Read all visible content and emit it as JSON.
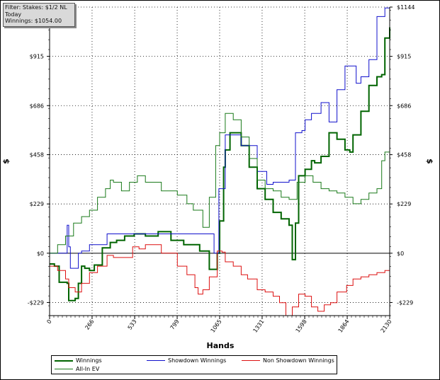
{
  "filter_box": {
    "line1": "Filter: Stakes: $1/2 NL",
    "line2": "Today",
    "line3": "Winnings: $1054.00"
  },
  "chart_data": {
    "type": "line",
    "xlabel": "Hands",
    "ylabel": "$",
    "xlim": [
      0,
      2130
    ],
    "ylim": [
      -290,
      1144
    ],
    "x_ticks": [
      0,
      266,
      533,
      799,
      1065,
      1331,
      1598,
      1864,
      2130
    ],
    "x_tick_labels": [
      "0",
      "266",
      "533",
      "799",
      "1065",
      "1331",
      "1598",
      "1864",
      "2130"
    ],
    "y_ticks": [
      -229,
      0,
      229,
      458,
      686,
      915,
      1144
    ],
    "y_tick_labels": [
      "-$229",
      "$0",
      "$229",
      "$458",
      "$686",
      "$915",
      "$1144"
    ],
    "grid": true,
    "legend_position": "bottom",
    "series": [
      {
        "name": "Winnings",
        "color": "#006400",
        "width": 2,
        "x": [
          0,
          30,
          60,
          110,
          120,
          160,
          180,
          200,
          220,
          250,
          280,
          330,
          380,
          420,
          470,
          530,
          600,
          680,
          760,
          840,
          940,
          1000,
          1050,
          1065,
          1090,
          1100,
          1130,
          1200,
          1250,
          1300,
          1350,
          1400,
          1450,
          1500,
          1520,
          1540,
          1560,
          1600,
          1640,
          1660,
          1700,
          1750,
          1800,
          1850,
          1880,
          1900,
          1950,
          2000,
          2050,
          2080,
          2100,
          2130
        ],
        "y": [
          -50,
          -60,
          -135,
          -140,
          -220,
          -210,
          -140,
          -60,
          -70,
          -80,
          -55,
          25,
          50,
          60,
          80,
          90,
          80,
          100,
          60,
          40,
          10,
          -75,
          0,
          150,
          400,
          480,
          560,
          500,
          400,
          300,
          250,
          190,
          160,
          130,
          -30,
          140,
          360,
          390,
          430,
          420,
          450,
          560,
          530,
          480,
          470,
          550,
          660,
          780,
          820,
          830,
          1000,
          1050
        ]
      },
      {
        "name": "Showdown Winnings",
        "color": "#1010cc",
        "width": 1,
        "x": [
          0,
          100,
          110,
          120,
          130,
          180,
          200,
          250,
          360,
          1000,
          1030,
          1060,
          1100,
          1200,
          1300,
          1360,
          1400,
          1500,
          1540,
          1580,
          1600,
          1640,
          1700,
          1750,
          1800,
          1850,
          1900,
          1920,
          1950,
          2000,
          2050,
          2100,
          2130
        ],
        "y": [
          0,
          0,
          130,
          30,
          -70,
          0,
          10,
          40,
          90,
          90,
          0,
          300,
          550,
          500,
          380,
          320,
          330,
          340,
          560,
          570,
          620,
          650,
          700,
          610,
          760,
          870,
          870,
          790,
          820,
          900,
          1100,
          1140,
          1144
        ]
      },
      {
        "name": "Non Showdown Winnings",
        "color": "#dd1111",
        "width": 1,
        "x": [
          0,
          50,
          100,
          120,
          160,
          200,
          250,
          300,
          360,
          400,
          450,
          520,
          560,
          600,
          700,
          800,
          860,
          910,
          930,
          960,
          1000,
          1050,
          1080,
          1100,
          1150,
          1200,
          1240,
          1300,
          1350,
          1400,
          1440,
          1480,
          1520,
          1560,
          1600,
          1640,
          1680,
          1720,
          1760,
          1800,
          1860,
          1900,
          1950,
          2000,
          2050,
          2100,
          2130
        ],
        "y": [
          -60,
          -80,
          -120,
          -160,
          -180,
          -140,
          -90,
          -60,
          -10,
          -20,
          -20,
          30,
          20,
          40,
          0,
          -60,
          -100,
          -160,
          -190,
          -170,
          -110,
          10,
          5,
          -40,
          -60,
          -100,
          -120,
          -170,
          -180,
          -200,
          -230,
          -290,
          -250,
          -190,
          -200,
          -250,
          -270,
          -240,
          -230,
          -180,
          -150,
          -120,
          -110,
          -100,
          -90,
          -80,
          -75
        ]
      },
      {
        "name": "All-In EV",
        "color": "#1a7a1a",
        "width": 1,
        "x": [
          0,
          50,
          100,
          150,
          200,
          250,
          300,
          350,
          380,
          400,
          450,
          500,
          550,
          600,
          700,
          800,
          860,
          900,
          960,
          1000,
          1040,
          1065,
          1100,
          1150,
          1200,
          1250,
          1300,
          1350,
          1400,
          1450,
          1500,
          1550,
          1600,
          1650,
          1700,
          1750,
          1800,
          1850,
          1900,
          1950,
          2000,
          2050,
          2080,
          2100,
          2130
        ],
        "y": [
          0,
          40,
          80,
          140,
          170,
          200,
          260,
          300,
          340,
          330,
          290,
          330,
          360,
          330,
          290,
          270,
          230,
          200,
          120,
          260,
          500,
          560,
          650,
          620,
          540,
          440,
          340,
          300,
          290,
          260,
          250,
          330,
          360,
          330,
          300,
          290,
          280,
          260,
          230,
          250,
          280,
          300,
          430,
          470,
          500
        ]
      }
    ]
  },
  "legend": {
    "items": [
      {
        "label": "Winnings",
        "color": "#006400",
        "width": 2
      },
      {
        "label": "Showdown Winnings",
        "color": "#1010cc",
        "width": 1
      },
      {
        "label": "Non Showdown Winnings",
        "color": "#dd1111",
        "width": 1
      },
      {
        "label": "All-In EV",
        "color": "#1a7a1a",
        "width": 1
      }
    ]
  }
}
